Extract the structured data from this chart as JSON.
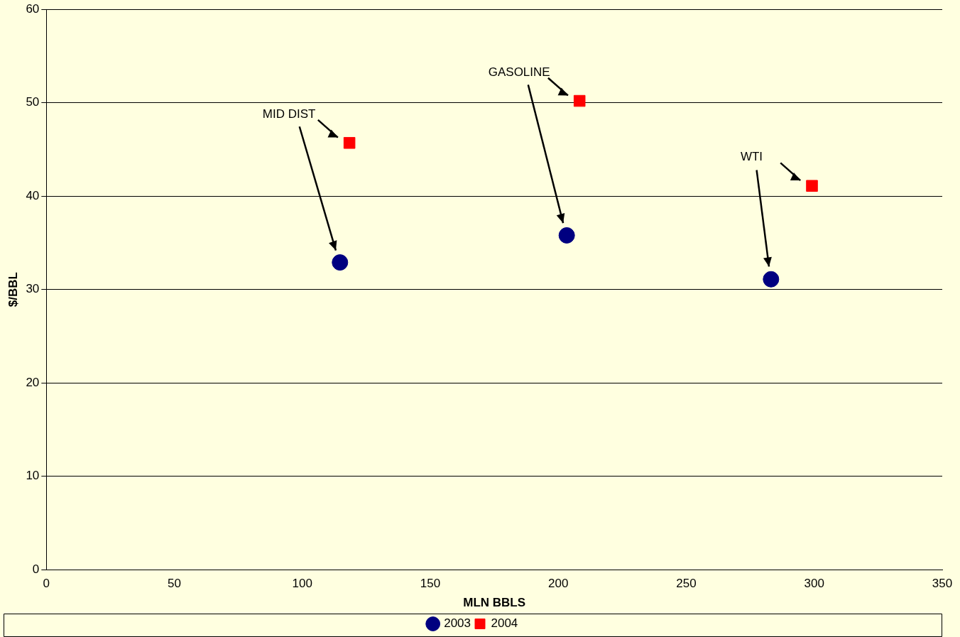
{
  "chart_data": {
    "type": "scatter",
    "xlabel": "MLN BBLS",
    "ylabel": "$/BBL",
    "series": [
      {
        "name": "2003",
        "color": "#000080",
        "marker": "circle",
        "x": [
          114.7,
          203.3,
          283.1
        ],
        "values": [
          32.9,
          35.8,
          31.1
        ]
      },
      {
        "name": "2004",
        "color": "#ff0000",
        "marker": "square",
        "x": [
          118.4,
          208.3,
          299.1
        ],
        "values": [
          45.7,
          50.2,
          41.1
        ]
      }
    ],
    "xlim": [
      0,
      350
    ],
    "xticks": [
      0,
      50,
      100,
      150,
      200,
      250,
      300,
      350
    ],
    "ylim": [
      0,
      60
    ],
    "yticks": [
      0,
      10,
      20,
      30,
      40,
      50,
      60
    ],
    "grid": "y",
    "legend": "bottom",
    "annotations": [
      "MID DIST",
      "GASOLINE",
      "WTI"
    ]
  }
}
